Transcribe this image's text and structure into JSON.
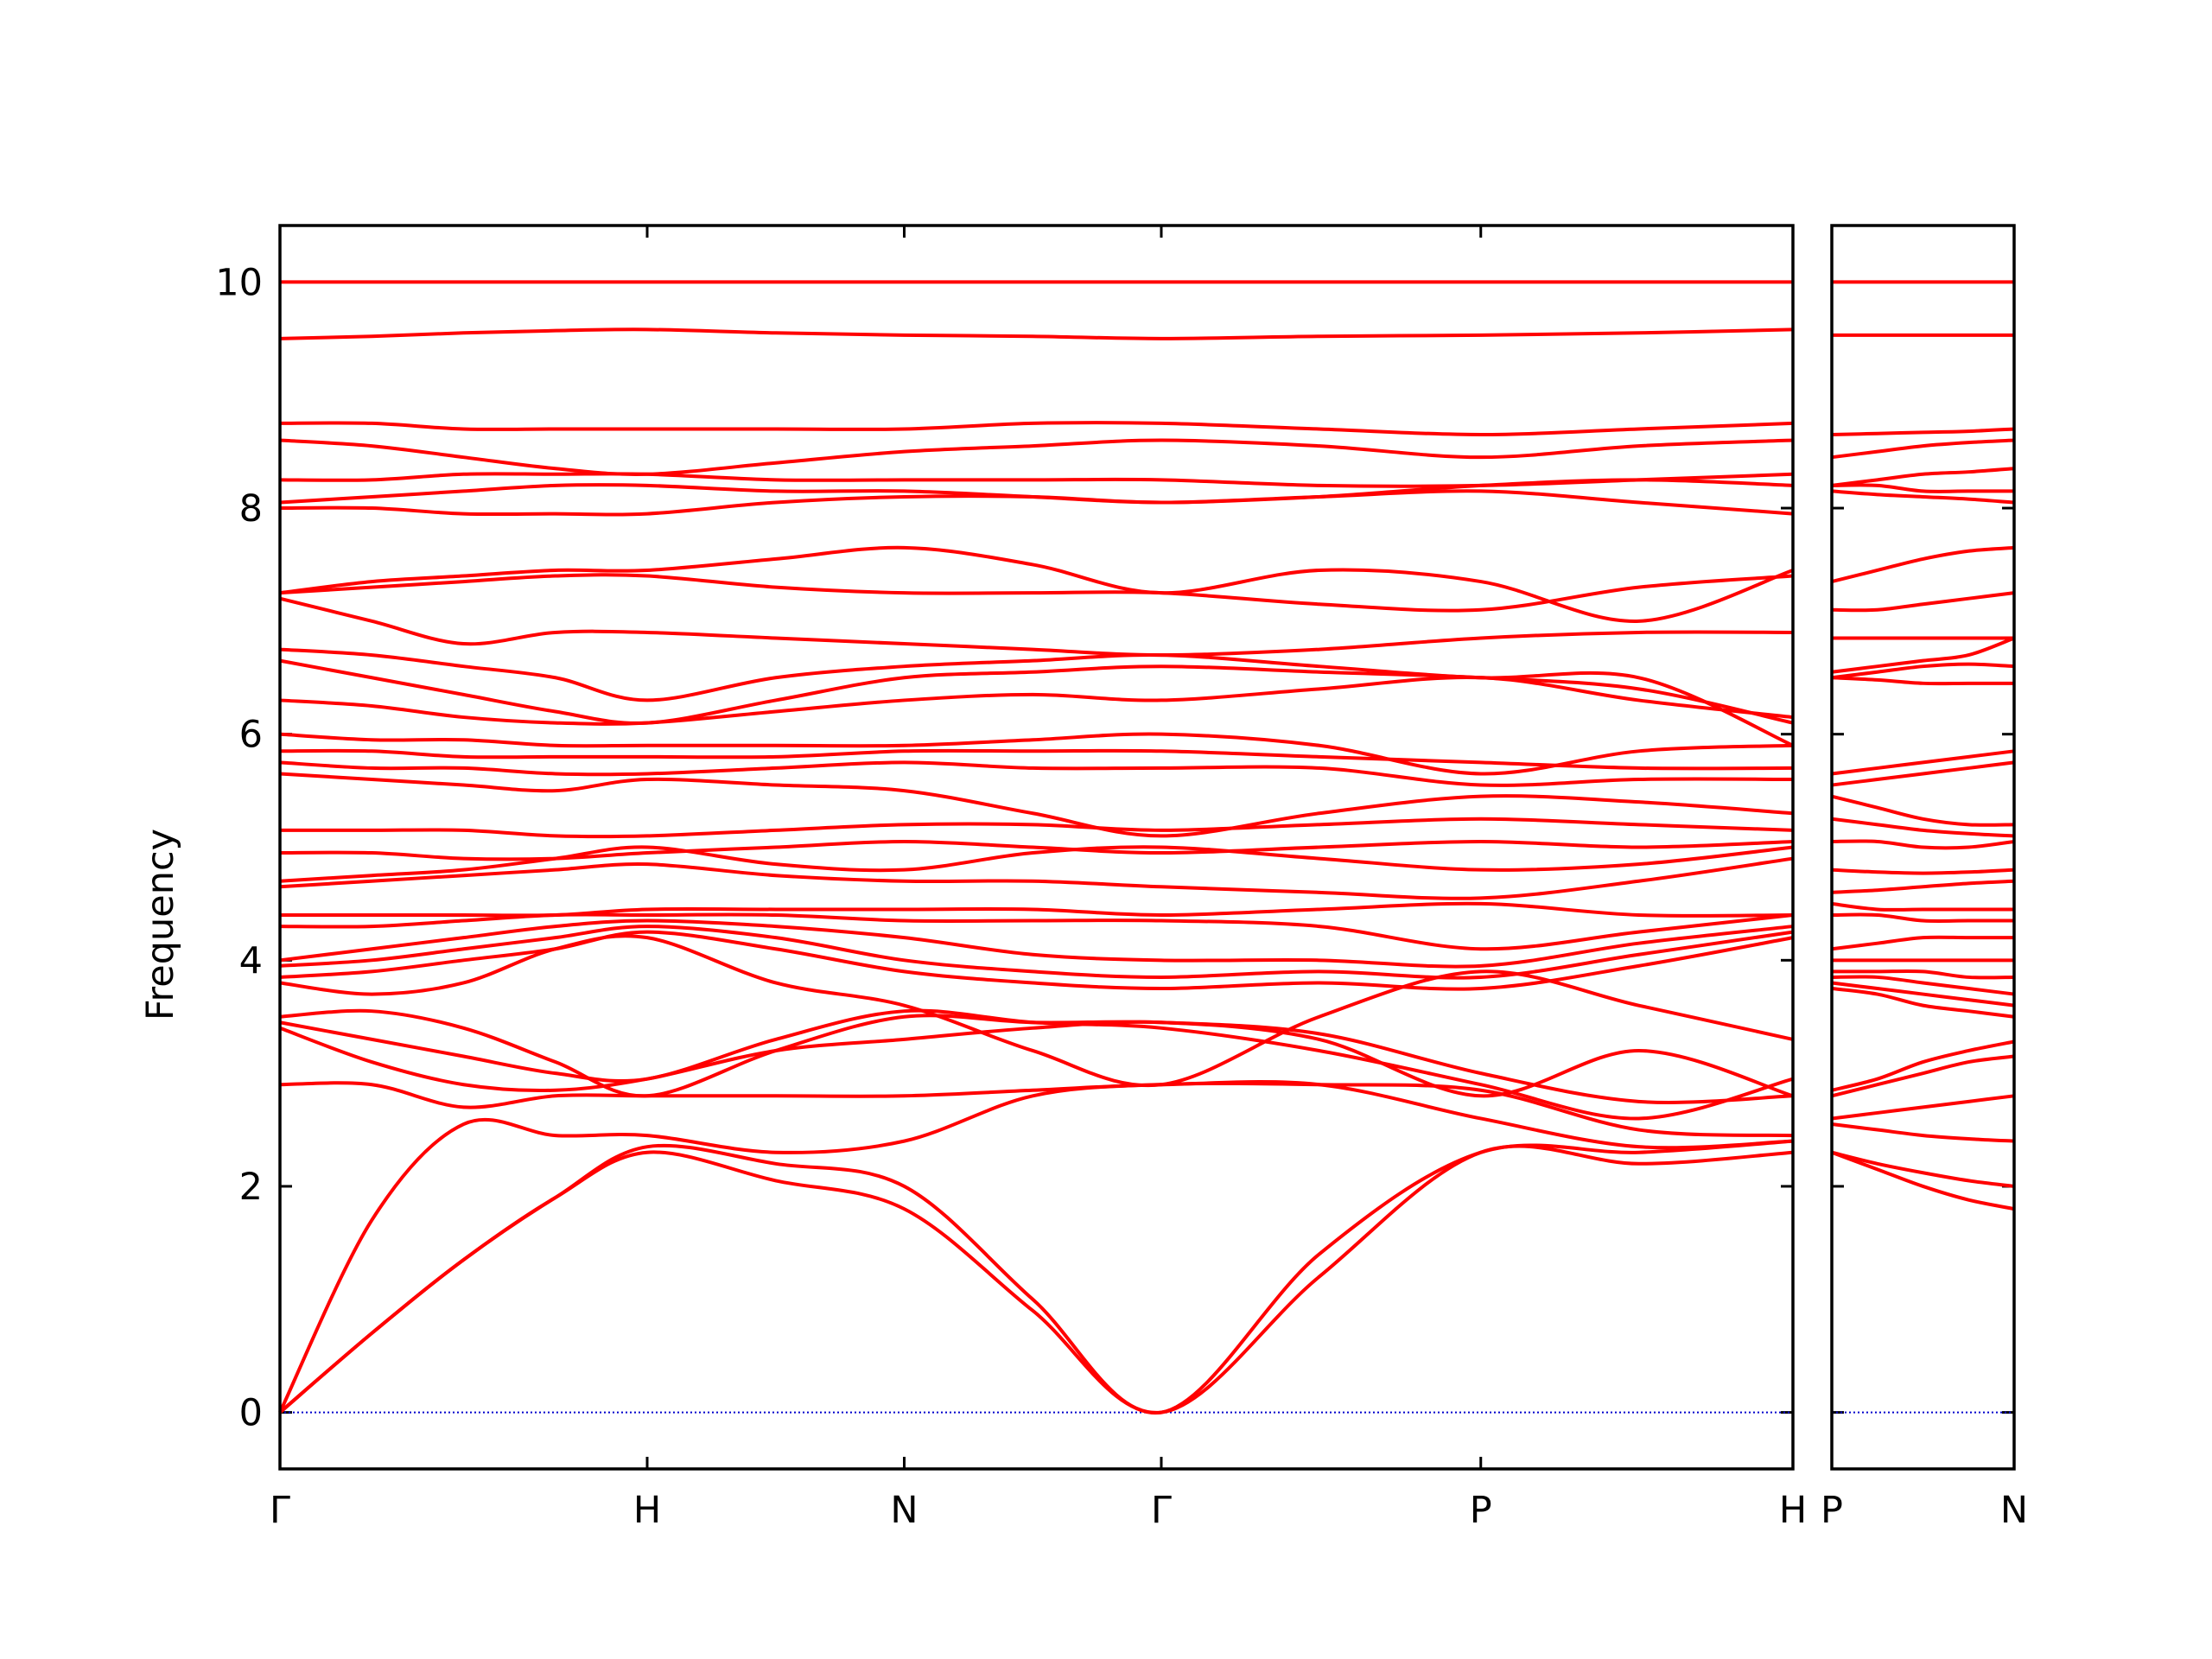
{
  "chart_data": [
    {
      "type": "line",
      "ylabel": "Frequency",
      "color": "#ff0000",
      "zero_line_color": "#0000cc",
      "x": [
        0,
        0.25,
        0.5,
        0.75,
        1.0,
        1.35,
        1.7,
        2.05,
        2.4,
        2.83,
        3.27,
        3.7,
        4.12
      ],
      "xlim": [
        0,
        4.12
      ],
      "xticks": [
        {
          "value": 0,
          "label": "Γ"
        },
        {
          "value": 1.0,
          "label": "H"
        },
        {
          "value": 1.7,
          "label": "N"
        },
        {
          "value": 2.4,
          "label": "Γ"
        },
        {
          "value": 3.27,
          "label": "P"
        },
        {
          "value": 4.12,
          "label": "H"
        }
      ],
      "ylim": [
        -0.5,
        10.5
      ],
      "yticks": [
        0,
        2,
        4,
        6,
        8,
        10
      ],
      "series": [
        {
          "values": [
            0,
            0.7,
            1.35,
            1.9,
            2.3,
            2.05,
            1.8,
            0.9,
            0,
            1.2,
            2.3,
            2.2,
            2.3
          ]
        },
        {
          "values": [
            0,
            0.7,
            1.35,
            1.9,
            2.35,
            2.2,
            2.0,
            1.0,
            0,
            1.4,
            2.3,
            2.3,
            2.4
          ]
        },
        {
          "values": [
            0,
            1.7,
            2.55,
            2.45,
            2.45,
            2.3,
            2.4,
            2.8,
            2.9,
            2.9,
            2.85,
            2.5,
            2.45
          ]
        },
        {
          "values": [
            2.9,
            2.9,
            2.7,
            2.8,
            2.8,
            2.8,
            2.8,
            2.85,
            2.9,
            2.9,
            2.6,
            2.35,
            2.4
          ]
        },
        {
          "values": [
            3.4,
            3.1,
            2.9,
            2.85,
            2.95,
            3.2,
            3.3,
            3.4,
            3.45,
            3.3,
            2.8,
            3.2,
            2.8
          ]
        },
        {
          "values": [
            3.45,
            3.3,
            3.15,
            3.0,
            2.95,
            3.3,
            3.55,
            3.45,
            3.4,
            3.2,
            2.9,
            2.6,
            2.95
          ]
        },
        {
          "values": [
            3.5,
            3.55,
            3.4,
            3.1,
            2.8,
            3.2,
            3.5,
            3.45,
            3.45,
            3.35,
            3.0,
            2.75,
            2.8
          ]
        },
        {
          "values": [
            3.8,
            3.7,
            3.8,
            4.1,
            4.2,
            3.8,
            3.6,
            3.2,
            2.9,
            3.5,
            3.9,
            3.6,
            3.3
          ]
        },
        {
          "values": [
            3.85,
            3.9,
            4.0,
            4.1,
            4.25,
            4.1,
            3.9,
            3.8,
            3.75,
            3.8,
            3.75,
            3.95,
            4.2
          ]
        },
        {
          "values": [
            3.95,
            4.0,
            4.1,
            4.2,
            4.3,
            4.2,
            4.0,
            3.9,
            3.85,
            3.9,
            3.85,
            4.05,
            4.25
          ]
        },
        {
          "values": [
            4.0,
            4.1,
            4.2,
            4.3,
            4.35,
            4.3,
            4.2,
            4.05,
            4.0,
            4.0,
            3.95,
            4.15,
            4.3
          ]
        },
        {
          "values": [
            4.3,
            4.3,
            4.35,
            4.4,
            4.4,
            4.4,
            4.35,
            4.35,
            4.35,
            4.3,
            4.1,
            4.25,
            4.4
          ]
        },
        {
          "values": [
            4.4,
            4.4,
            4.4,
            4.4,
            4.45,
            4.45,
            4.45,
            4.45,
            4.4,
            4.45,
            4.5,
            4.4,
            4.4
          ]
        },
        {
          "values": [
            4.65,
            4.7,
            4.75,
            4.8,
            4.85,
            4.75,
            4.7,
            4.7,
            4.65,
            4.6,
            4.55,
            4.7,
            4.9
          ]
        },
        {
          "values": [
            4.7,
            4.75,
            4.8,
            4.9,
            5.0,
            4.85,
            4.8,
            4.95,
            5.0,
            4.9,
            4.8,
            4.85,
            5.0
          ]
        },
        {
          "values": [
            4.95,
            4.95,
            4.9,
            4.9,
            4.95,
            5.0,
            5.05,
            5.0,
            4.95,
            5.0,
            5.05,
            5.0,
            5.05
          ]
        },
        {
          "values": [
            5.15,
            5.15,
            5.15,
            5.1,
            5.1,
            5.15,
            5.2,
            5.2,
            5.15,
            5.2,
            5.25,
            5.2,
            5.15
          ]
        },
        {
          "values": [
            5.65,
            5.6,
            5.55,
            5.5,
            5.6,
            5.55,
            5.5,
            5.3,
            5.1,
            5.3,
            5.45,
            5.4,
            5.3
          ]
        },
        {
          "values": [
            5.75,
            5.7,
            5.7,
            5.65,
            5.65,
            5.7,
            5.75,
            5.7,
            5.7,
            5.7,
            5.55,
            5.6,
            5.6
          ]
        },
        {
          "values": [
            5.85,
            5.85,
            5.8,
            5.8,
            5.8,
            5.8,
            5.85,
            5.85,
            5.85,
            5.8,
            5.75,
            5.7,
            5.7
          ]
        },
        {
          "values": [
            6.0,
            5.95,
            5.95,
            5.9,
            5.9,
            5.9,
            5.9,
            5.95,
            6.0,
            5.9,
            5.65,
            5.85,
            5.9
          ]
        },
        {
          "values": [
            6.3,
            6.25,
            6.15,
            6.1,
            6.1,
            6.2,
            6.3,
            6.35,
            6.3,
            6.4,
            6.5,
            6.3,
            6.15
          ]
        },
        {
          "values": [
            6.65,
            6.5,
            6.35,
            6.2,
            6.1,
            6.3,
            6.5,
            6.55,
            6.6,
            6.55,
            6.5,
            6.4,
            6.1
          ]
        },
        {
          "values": [
            6.75,
            6.7,
            6.6,
            6.5,
            6.3,
            6.5,
            6.6,
            6.65,
            6.7,
            6.6,
            6.5,
            6.5,
            5.9
          ]
        },
        {
          "values": [
            7.2,
            7.0,
            6.8,
            6.9,
            6.9,
            6.85,
            6.8,
            6.75,
            6.7,
            6.75,
            6.85,
            6.9,
            6.9
          ]
        },
        {
          "values": [
            7.25,
            7.3,
            7.35,
            7.4,
            7.4,
            7.3,
            7.25,
            7.25,
            7.25,
            7.15,
            7.1,
            7.3,
            7.4
          ]
        },
        {
          "values": [
            7.25,
            7.35,
            7.4,
            7.45,
            7.45,
            7.55,
            7.65,
            7.5,
            7.25,
            7.45,
            7.35,
            7.0,
            7.45
          ]
        },
        {
          "values": [
            8.0,
            8.0,
            7.95,
            7.95,
            7.95,
            8.05,
            8.1,
            8.1,
            8.05,
            8.1,
            8.15,
            8.05,
            7.95
          ]
        },
        {
          "values": [
            8.05,
            8.1,
            8.15,
            8.2,
            8.2,
            8.15,
            8.15,
            8.1,
            8.05,
            8.1,
            8.2,
            8.25,
            8.2
          ]
        },
        {
          "values": [
            8.25,
            8.25,
            8.3,
            8.3,
            8.3,
            8.25,
            8.25,
            8.25,
            8.25,
            8.2,
            8.2,
            8.25,
            8.3
          ]
        },
        {
          "values": [
            8.6,
            8.55,
            8.45,
            8.35,
            8.3,
            8.4,
            8.5,
            8.55,
            8.6,
            8.55,
            8.45,
            8.55,
            8.6
          ]
        },
        {
          "values": [
            8.75,
            8.75,
            8.7,
            8.7,
            8.7,
            8.7,
            8.7,
            8.75,
            8.75,
            8.7,
            8.65,
            8.7,
            8.75
          ]
        },
        {
          "values": [
            9.5,
            9.52,
            9.55,
            9.57,
            9.58,
            9.55,
            9.53,
            9.52,
            9.5,
            9.52,
            9.53,
            9.55,
            9.58
          ]
        },
        {
          "values": [
            10.0,
            10.0,
            10.0,
            10.0,
            10.0,
            10.0,
            10.0,
            10.0,
            10.0,
            10.0,
            10.0,
            10.0,
            10.0
          ]
        }
      ]
    },
    {
      "type": "line",
      "color": "#ff0000",
      "zero_line_color": "#0000cc",
      "x": [
        0,
        0.125,
        0.25,
        0.375,
        0.5
      ],
      "xlim": [
        0,
        0.5
      ],
      "xticks": [
        {
          "value": 0,
          "label": "P"
        },
        {
          "value": 0.5,
          "label": "N"
        }
      ],
      "ylim": [
        -0.5,
        10.5
      ],
      "series": [
        {
          "values": [
            2.3,
            2.15,
            2.0,
            1.88,
            1.8
          ]
        },
        {
          "values": [
            2.3,
            2.2,
            2.12,
            2.05,
            2.0
          ]
        },
        {
          "values": [
            2.55,
            2.5,
            2.45,
            2.42,
            2.4
          ]
        },
        {
          "values": [
            2.6,
            2.65,
            2.7,
            2.75,
            2.8
          ]
        },
        {
          "values": [
            2.8,
            2.9,
            3.0,
            3.1,
            3.15
          ]
        },
        {
          "values": [
            2.85,
            2.95,
            3.1,
            3.2,
            3.28
          ]
        },
        {
          "values": [
            3.75,
            3.7,
            3.6,
            3.55,
            3.5
          ]
        },
        {
          "values": [
            3.8,
            3.75,
            3.7,
            3.65,
            3.6
          ]
        },
        {
          "values": [
            3.85,
            3.85,
            3.8,
            3.75,
            3.7
          ]
        },
        {
          "values": [
            3.9,
            3.9,
            3.9,
            3.85,
            3.85
          ]
        },
        {
          "values": [
            4.0,
            4.0,
            4.0,
            4.0,
            4.0
          ]
        },
        {
          "values": [
            4.1,
            4.15,
            4.2,
            4.2,
            4.2
          ]
        },
        {
          "values": [
            4.4,
            4.4,
            4.35,
            4.35,
            4.35
          ]
        },
        {
          "values": [
            4.5,
            4.45,
            4.45,
            4.45,
            4.45
          ]
        },
        {
          "values": [
            4.6,
            4.62,
            4.65,
            4.68,
            4.7
          ]
        },
        {
          "values": [
            4.8,
            4.78,
            4.77,
            4.78,
            4.8
          ]
        },
        {
          "values": [
            5.05,
            5.05,
            5.0,
            5.0,
            5.05
          ]
        },
        {
          "values": [
            5.25,
            5.2,
            5.15,
            5.12,
            5.1
          ]
        },
        {
          "values": [
            5.45,
            5.35,
            5.25,
            5.2,
            5.2
          ]
        },
        {
          "values": [
            5.55,
            5.6,
            5.65,
            5.7,
            5.75
          ]
        },
        {
          "values": [
            5.65,
            5.7,
            5.75,
            5.8,
            5.85
          ]
        },
        {
          "values": [
            6.5,
            6.48,
            6.45,
            6.45,
            6.45
          ]
        },
        {
          "values": [
            6.5,
            6.55,
            6.6,
            6.62,
            6.6
          ]
        },
        {
          "values": [
            6.55,
            6.6,
            6.65,
            6.7,
            6.85
          ]
        },
        {
          "values": [
            6.85,
            6.85,
            6.85,
            6.85,
            6.85
          ]
        },
        {
          "values": [
            7.1,
            7.1,
            7.15,
            7.2,
            7.25
          ]
        },
        {
          "values": [
            7.35,
            7.45,
            7.55,
            7.62,
            7.65
          ]
        },
        {
          "values": [
            8.15,
            8.12,
            8.1,
            8.08,
            8.05
          ]
        },
        {
          "values": [
            8.2,
            8.2,
            8.15,
            8.15,
            8.15
          ]
        },
        {
          "values": [
            8.2,
            8.25,
            8.3,
            8.32,
            8.35
          ]
        },
        {
          "values": [
            8.45,
            8.5,
            8.55,
            8.58,
            8.6
          ]
        },
        {
          "values": [
            8.65,
            8.66,
            8.67,
            8.68,
            8.7
          ]
        },
        {
          "values": [
            9.53,
            9.53,
            9.53,
            9.53,
            9.53
          ]
        },
        {
          "values": [
            10.0,
            10.0,
            10.0,
            10.0,
            10.0
          ]
        }
      ]
    }
  ]
}
